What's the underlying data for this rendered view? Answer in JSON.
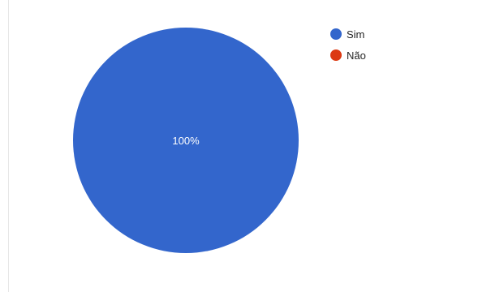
{
  "chart_data": {
    "type": "pie",
    "categories": [
      "Sim",
      "Não"
    ],
    "values": [
      100,
      0
    ],
    "value_unit": "%",
    "colors": [
      "#3366cc",
      "#dc3912"
    ],
    "legend_position": "top-right",
    "data_labels": [
      "100%",
      ""
    ]
  }
}
